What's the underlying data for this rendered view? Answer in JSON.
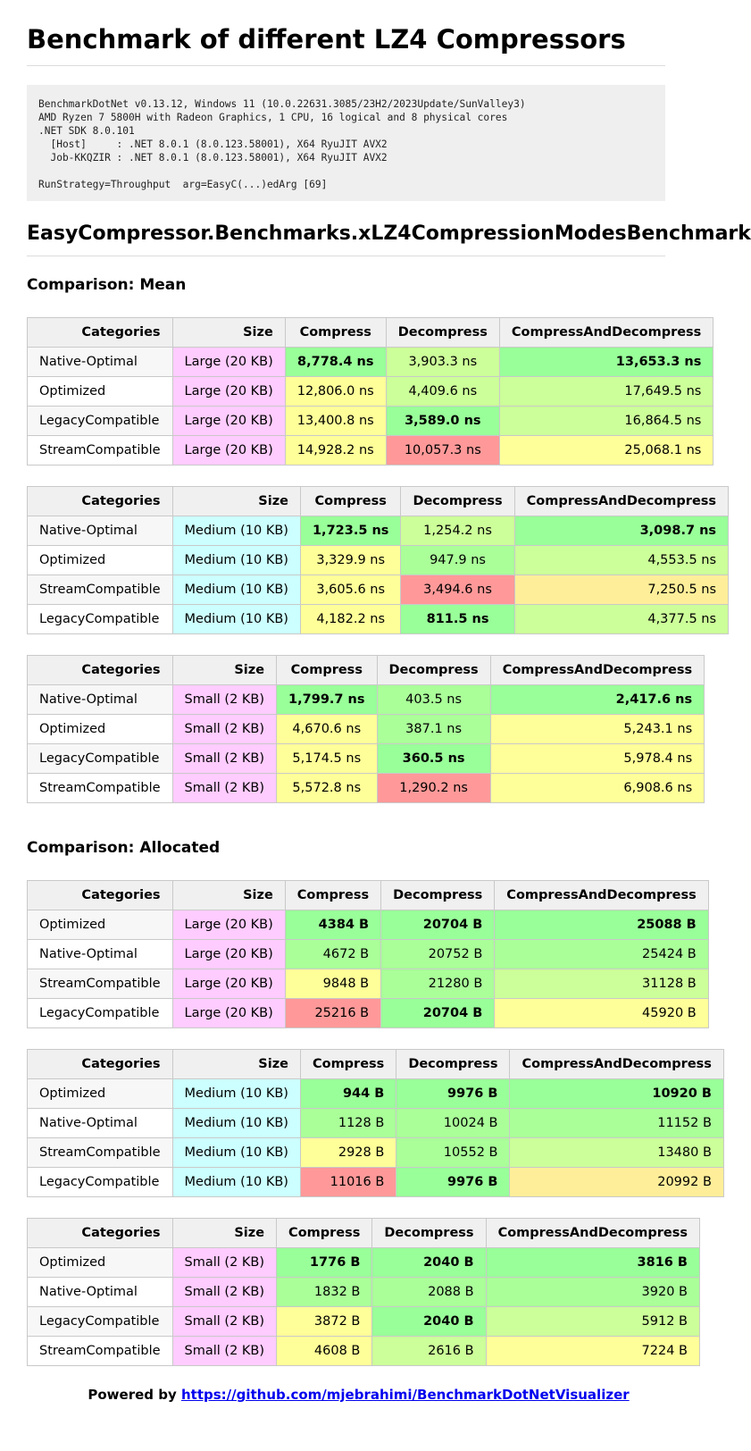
{
  "title": "Benchmark of different LZ4 Compressors",
  "env": "BenchmarkDotNet v0.13.12, Windows 11 (10.0.22631.3085/23H2/2023Update/SunValley3)\nAMD Ryzen 7 5800H with Radeon Graphics, 1 CPU, 16 logical and 8 physical cores\n.NET SDK 8.0.101\n  [Host]     : .NET 8.0.1 (8.0.123.58001), X64 RyuJIT AVX2\n  Job-KKQZIR : .NET 8.0.1 (8.0.123.58001), X64 RyuJIT AVX2\n\nRunStrategy=Throughput  arg=EasyC(...)edArg [69]",
  "benchmark_name": "EasyCompressor.Benchmarks.xLZ4CompressionModesBenchmark",
  "headers": {
    "categories": "Categories",
    "size": "Size",
    "compress": "Compress",
    "decompress": "Decompress",
    "both": "CompressAndDecompress"
  },
  "mean": {
    "heading": "Comparison: Mean",
    "tables": [
      {
        "rows": [
          {
            "cat": "Native-Optimal",
            "size": "Large (20 KB)",
            "compress": "8,778.4 ns",
            "decompress": "3,903.3 ns",
            "both": "13,653.3 ns"
          },
          {
            "cat": "Optimized",
            "size": "Large (20 KB)",
            "compress": "12,806.0 ns",
            "decompress": "4,409.6 ns",
            "both": "17,649.5 ns"
          },
          {
            "cat": "LegacyCompatible",
            "size": "Large (20 KB)",
            "compress": "13,400.8 ns",
            "decompress": "3,589.0 ns",
            "both": "16,864.5 ns"
          },
          {
            "cat": "StreamCompatible",
            "size": "Large (20 KB)",
            "compress": "14,928.2 ns",
            "decompress": "10,057.3 ns",
            "both": "25,068.1 ns"
          }
        ]
      },
      {
        "rows": [
          {
            "cat": "Native-Optimal",
            "size": "Medium (10 KB)",
            "compress": "1,723.5 ns",
            "decompress": "1,254.2 ns",
            "both": "3,098.7 ns"
          },
          {
            "cat": "Optimized",
            "size": "Medium (10 KB)",
            "compress": "3,329.9 ns",
            "decompress": "947.9 ns",
            "both": "4,553.5 ns"
          },
          {
            "cat": "StreamCompatible",
            "size": "Medium (10 KB)",
            "compress": "3,605.6 ns",
            "decompress": "3,494.6 ns",
            "both": "7,250.5 ns"
          },
          {
            "cat": "LegacyCompatible",
            "size": "Medium (10 KB)",
            "compress": "4,182.2 ns",
            "decompress": "811.5 ns",
            "both": "4,377.5 ns"
          }
        ]
      },
      {
        "rows": [
          {
            "cat": "Native-Optimal",
            "size": "Small (2 KB)",
            "compress": "1,799.7 ns",
            "decompress": "403.5 ns",
            "both": "2,417.6 ns"
          },
          {
            "cat": "Optimized",
            "size": "Small (2 KB)",
            "compress": "4,670.6 ns",
            "decompress": "387.1 ns",
            "both": "5,243.1 ns"
          },
          {
            "cat": "LegacyCompatible",
            "size": "Small (2 KB)",
            "compress": "5,174.5 ns",
            "decompress": "360.5 ns",
            "both": "5,978.4 ns"
          },
          {
            "cat": "StreamCompatible",
            "size": "Small (2 KB)",
            "compress": "5,572.8 ns",
            "decompress": "1,290.2 ns",
            "both": "6,908.6 ns"
          }
        ]
      }
    ]
  },
  "allocated": {
    "heading": "Comparison: Allocated",
    "tables": [
      {
        "rows": [
          {
            "cat": "Optimized",
            "size": "Large (20 KB)",
            "compress": "4384 B",
            "decompress": "20704 B",
            "both": "25088 B"
          },
          {
            "cat": "Native-Optimal",
            "size": "Large (20 KB)",
            "compress": "4672 B",
            "decompress": "20752 B",
            "both": "25424 B"
          },
          {
            "cat": "StreamCompatible",
            "size": "Large (20 KB)",
            "compress": "9848 B",
            "decompress": "21280 B",
            "both": "31128 B"
          },
          {
            "cat": "LegacyCompatible",
            "size": "Large (20 KB)",
            "compress": "25216 B",
            "decompress": "20704 B",
            "both": "45920 B"
          }
        ]
      },
      {
        "rows": [
          {
            "cat": "Optimized",
            "size": "Medium (10 KB)",
            "compress": "944 B",
            "decompress": "9976 B",
            "both": "10920 B"
          },
          {
            "cat": "Native-Optimal",
            "size": "Medium (10 KB)",
            "compress": "1128 B",
            "decompress": "10024 B",
            "both": "11152 B"
          },
          {
            "cat": "StreamCompatible",
            "size": "Medium (10 KB)",
            "compress": "2928 B",
            "decompress": "10552 B",
            "both": "13480 B"
          },
          {
            "cat": "LegacyCompatible",
            "size": "Medium (10 KB)",
            "compress": "11016 B",
            "decompress": "9976 B",
            "both": "20992 B"
          }
        ]
      },
      {
        "rows": [
          {
            "cat": "Optimized",
            "size": "Small (2 KB)",
            "compress": "1776 B",
            "decompress": "2040 B",
            "both": "3816 B"
          },
          {
            "cat": "Native-Optimal",
            "size": "Small (2 KB)",
            "compress": "1832 B",
            "decompress": "2088 B",
            "both": "3920 B"
          },
          {
            "cat": "LegacyCompatible",
            "size": "Small (2 KB)",
            "compress": "3872 B",
            "decompress": "2040 B",
            "both": "5912 B"
          },
          {
            "cat": "StreamCompatible",
            "size": "Small (2 KB)",
            "compress": "4608 B",
            "decompress": "2616 B",
            "both": "7224 B"
          }
        ]
      }
    ]
  },
  "footer": {
    "prefix": "Powered by",
    "link_text": "https://github.com/mjebrahimi/BenchmarkDotNetVisualizer"
  }
}
